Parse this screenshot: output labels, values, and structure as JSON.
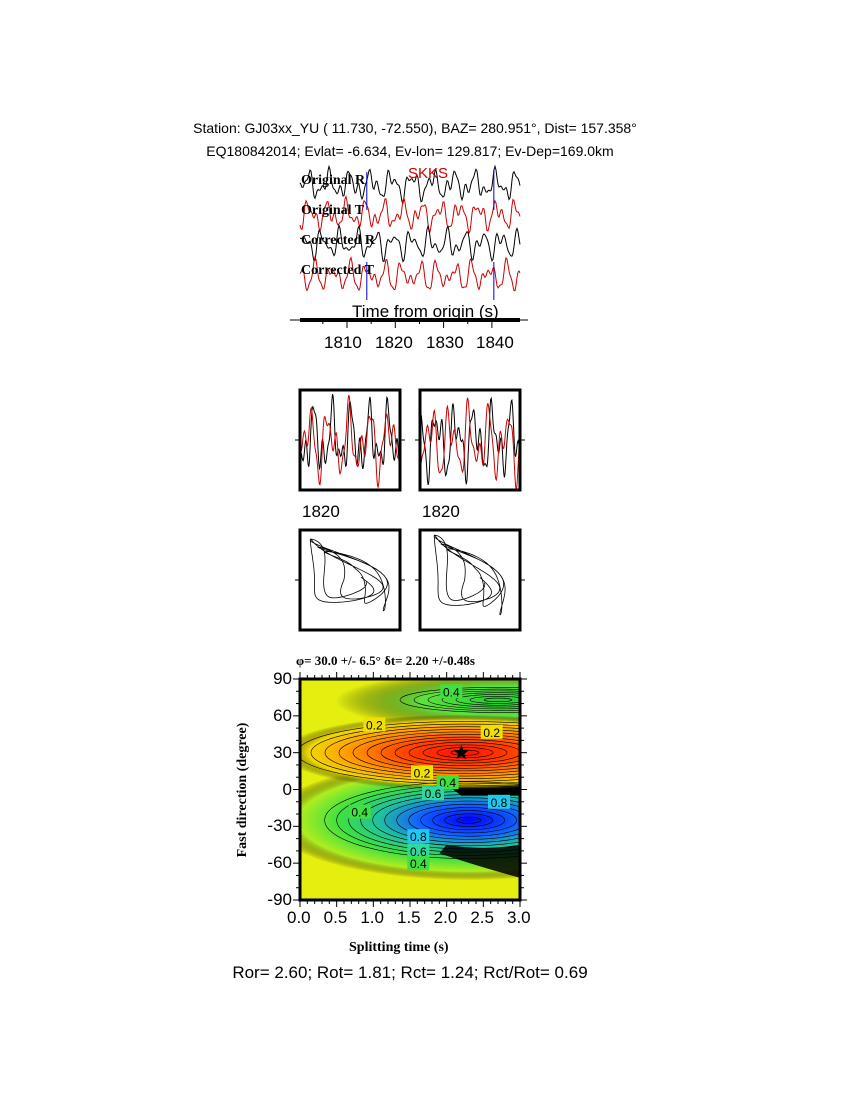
{
  "header": {
    "station_line": "Station: GJ03xx_YU (  11.730,  -72.550), BAZ=  280.951°, Dist=  157.358°",
    "event_line": "EQ180842014; Evlat=  -6.634, Ev-lon= 129.817; Ev-Dep=169.0km"
  },
  "traces": {
    "phase": "SKKS",
    "labels": [
      "Original R",
      "Original T",
      "Corrected R",
      "Corrected T"
    ],
    "xlabel": "Time from origin (s)",
    "xticks": [
      "1810",
      "1820",
      "1830",
      "1840"
    ],
    "window_start": 1814.1,
    "window_end": 1840.4,
    "colors": {
      "R": "#000000",
      "T": "#cc0000",
      "window": "#0000cc",
      "phase": "#cc0000"
    }
  },
  "waveform_panels": {
    "tick_labels": [
      "1820",
      "1820"
    ]
  },
  "chart_data": {
    "type": "heatmap",
    "title": "φ= 30.0 +/- 6.5° δt= 2.20 +/-0.48s",
    "xlabel": "Splitting time (s)",
    "ylabel": "Fast direction (degree)",
    "xlim": [
      0,
      3
    ],
    "ylim": [
      -90,
      90
    ],
    "xticks": [
      "0.0",
      "0.5",
      "1.0",
      "1.5",
      "2.0",
      "2.5",
      "3.0"
    ],
    "yticks": [
      "90",
      "60",
      "30",
      "0",
      "-30",
      "-60",
      "-90"
    ],
    "best_fit": {
      "dt": 2.2,
      "phi": 30
    },
    "contour_labels": [
      {
        "text": "0.4",
        "dt": 2.05,
        "phi": 80
      },
      {
        "text": "0.2",
        "dt": 1.0,
        "phi": 53
      },
      {
        "text": "0.2",
        "dt": 2.6,
        "phi": 47
      },
      {
        "text": "0.2",
        "dt": 1.65,
        "phi": 14
      },
      {
        "text": "0.4",
        "dt": 2.0,
        "phi": 6
      },
      {
        "text": "0.6",
        "dt": 1.8,
        "phi": -3
      },
      {
        "text": "0.8",
        "dt": 2.7,
        "phi": -10
      },
      {
        "text": "0.4",
        "dt": 0.8,
        "phi": -18
      },
      {
        "text": "0.8",
        "dt": 1.6,
        "phi": -38
      },
      {
        "text": "0.6",
        "dt": 1.6,
        "phi": -50
      },
      {
        "text": "0.4",
        "dt": 1.6,
        "phi": -60
      }
    ],
    "colors": {
      "background": "#e6f000",
      "max": "#ff1a00",
      "min": "#0010ff",
      "mid": "#30e040"
    }
  },
  "footer": {
    "ratios": "Ror= 2.60; Rot= 1.81; Rct= 1.24; Rct/Rot= 0.69"
  }
}
